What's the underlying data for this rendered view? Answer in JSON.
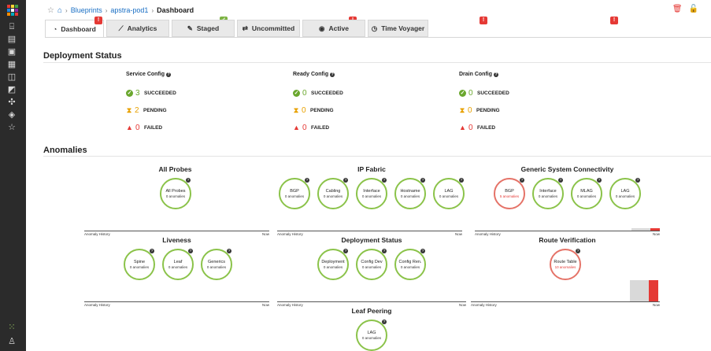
{
  "breadcrumb": {
    "home_icon": "home-icon",
    "link1": "Blueprints",
    "link2": "apstra-pod1",
    "current": "Dashboard"
  },
  "tabs": [
    {
      "label": "Dashboard",
      "icon": "speedometer-icon",
      "badge": "warning"
    },
    {
      "label": "Analytics",
      "icon": "chart-line-icon",
      "badge": "success"
    },
    {
      "label": "Staged",
      "icon": "edit-icon",
      "badge": "warning"
    },
    {
      "label": "Uncommitted",
      "icon": "diff-icon",
      "badge": "warning"
    },
    {
      "label": "Active",
      "icon": "broadcast-icon",
      "badge": "warning"
    },
    {
      "label": "Time Voyager",
      "icon": "history-icon",
      "badge": ""
    }
  ],
  "deployment": {
    "heading": "Deployment Status",
    "columns": [
      {
        "title": "Service Config",
        "succeeded": "3",
        "pending": "2",
        "failed": "0"
      },
      {
        "title": "Ready Config",
        "succeeded": "0",
        "pending": "0",
        "failed": "0"
      },
      {
        "title": "Drain Config",
        "succeeded": "0",
        "pending": "0",
        "failed": "0"
      }
    ],
    "labels": {
      "succeeded": "SUCCEEDED",
      "pending": "PENDING",
      "failed": "FAILED"
    }
  },
  "anomalies": {
    "heading": "Anomalies",
    "history_label": "Anomaly History",
    "now_label": "Now",
    "groups": {
      "all_probes": {
        "title": "All Probes",
        "gauges": [
          {
            "name": "All Probes",
            "value": "0 anomalies"
          }
        ]
      },
      "ip_fabric": {
        "title": "IP Fabric",
        "gauges": [
          {
            "name": "BGP",
            "value": "0 anomalies"
          },
          {
            "name": "Cabling",
            "value": "0 anomalies"
          },
          {
            "name": "Interface",
            "value": "0 anomalies"
          },
          {
            "name": "Hostname",
            "value": "0 anomalies"
          },
          {
            "name": "LAG",
            "value": "0 anomalies"
          }
        ]
      },
      "generic": {
        "title": "Generic System Connectivity",
        "gauges": [
          {
            "name": "BGP",
            "value": "5 anomalies"
          },
          {
            "name": "Interface",
            "value": "0 anomalies"
          },
          {
            "name": "MLAG",
            "value": "0 anomalies"
          },
          {
            "name": "LAG",
            "value": "0 anomalies"
          }
        ]
      },
      "liveness": {
        "title": "Liveness",
        "gauges": [
          {
            "name": "Spine",
            "value": "0 anomalies"
          },
          {
            "name": "Leaf",
            "value": "0 anomalies"
          },
          {
            "name": "Generics",
            "value": "0 anomalies"
          }
        ]
      },
      "deploy": {
        "title": "Deployment Status",
        "gauges": [
          {
            "name": "Deployment",
            "value": "0 anomalies"
          },
          {
            "name": "Config Dev",
            "value": "0 anomalies"
          },
          {
            "name": "Config Ren.",
            "value": "0 anomalies"
          }
        ]
      },
      "route": {
        "title": "Route Verification",
        "gauges": [
          {
            "name": "Route Table",
            "value": "10 anomalies"
          }
        ]
      },
      "leaf_peering": {
        "title": "Leaf Peering",
        "gauges": [
          {
            "name": "LAG",
            "value": "0 anomalies"
          }
        ]
      }
    }
  },
  "colors": {
    "ok": "#8bc34a",
    "anomaly": "#e57368",
    "link": "#1a6fc4",
    "rail": "#2b2b2b"
  }
}
